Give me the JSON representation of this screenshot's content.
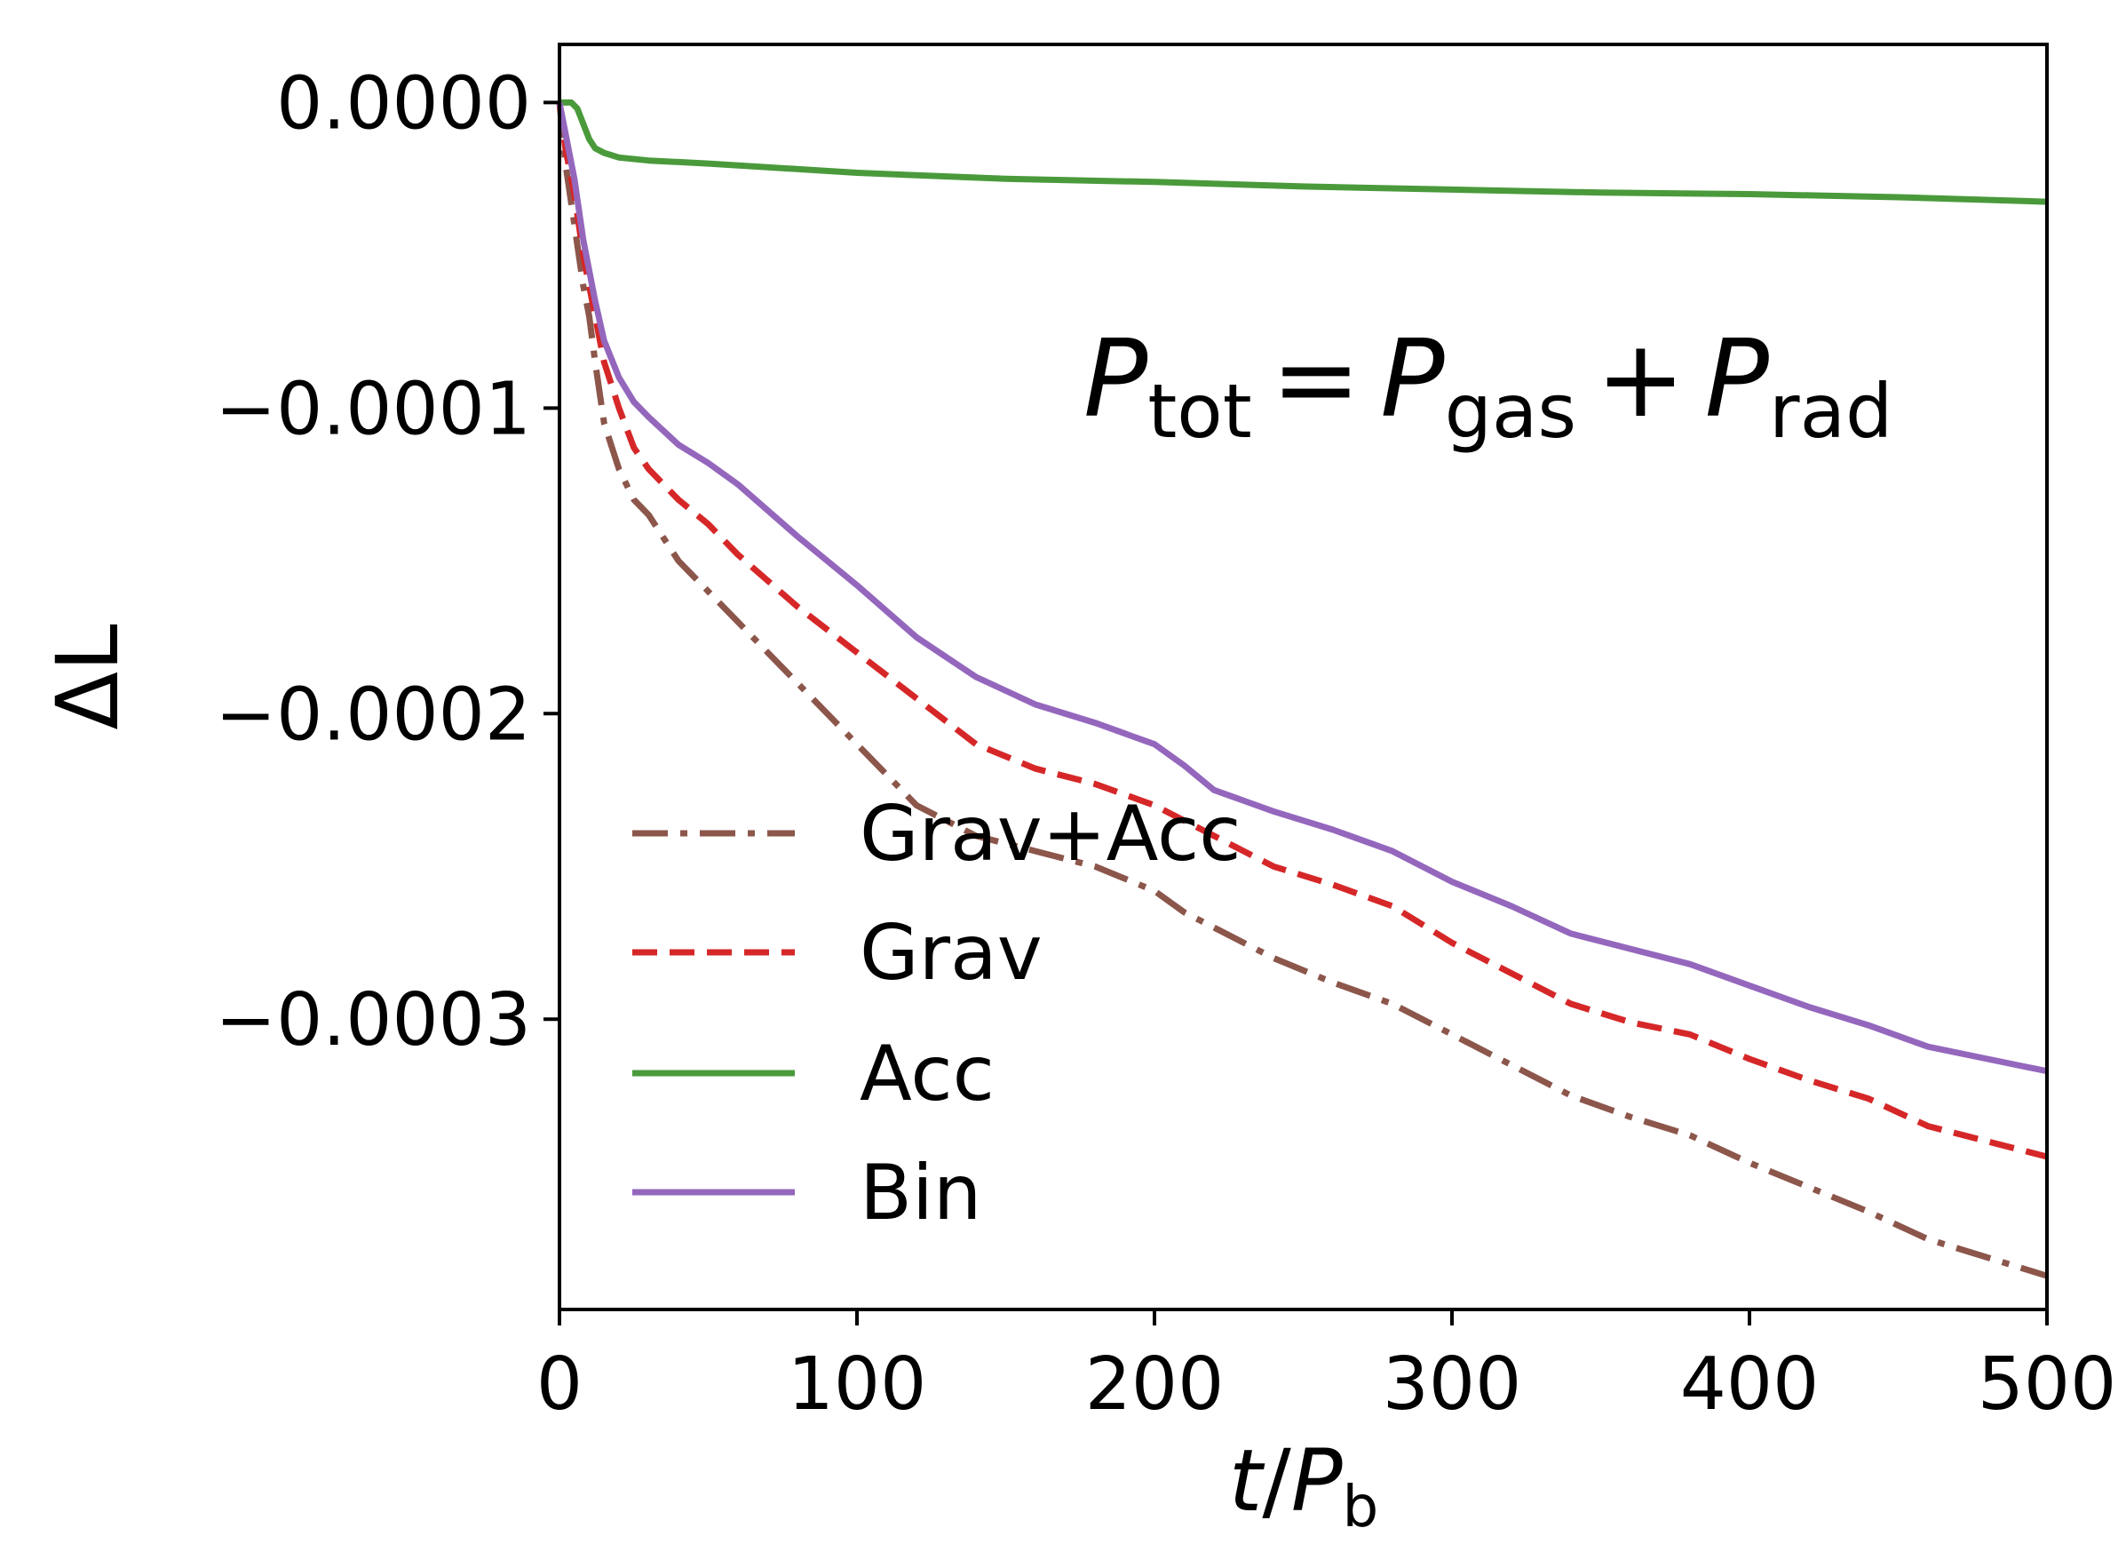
{
  "chart_data": {
    "type": "line",
    "title": "",
    "xlabel_main": "t",
    "xlabel_slash": "/",
    "xlabel_var": "P",
    "xlabel_sub": "b",
    "ylabel": "ΔL",
    "xlim": [
      0,
      500
    ],
    "ylim": [
      -0.000395,
      1.9e-05
    ],
    "xticks": [
      0,
      100,
      200,
      300,
      400,
      500
    ],
    "xtick_labels": [
      "0",
      "100",
      "200",
      "300",
      "400",
      "500"
    ],
    "yticks": [
      0.0,
      -0.0001,
      -0.0002,
      -0.0003
    ],
    "ytick_labels": [
      "0.0000",
      "−0.0001",
      "−0.0002",
      "−0.0003"
    ],
    "grid": false,
    "legend_position": "lower-left",
    "annotation": {
      "lhs_var": "P",
      "lhs_sub": "tot",
      "eq": "=",
      "t1_var": "P",
      "t1_sub": "gas",
      "plus": "+",
      "t2_var": "P",
      "t2_sub": "rad"
    },
    "series": [
      {
        "name": "Grav+Acc",
        "color": "#8c564b",
        "style": "dashdot",
        "x": [
          0,
          2,
          5,
          8,
          10,
          12,
          15,
          20,
          25,
          30,
          40,
          50,
          60,
          80,
          100,
          120,
          140,
          160,
          180,
          200,
          210,
          220,
          240,
          260,
          280,
          300,
          320,
          340,
          360,
          380,
          400,
          420,
          440,
          460,
          480,
          500
        ],
        "y": [
          0.0,
          -2e-05,
          -4e-05,
          -6e-05,
          -7e-05,
          -8.5e-05,
          -0.000105,
          -0.00012,
          -0.00013,
          -0.000135,
          -0.00015,
          -0.00016,
          -0.00017,
          -0.00019,
          -0.00021,
          -0.00023,
          -0.00024,
          -0.000245,
          -0.00025,
          -0.000258,
          -0.000265,
          -0.00027,
          -0.00028,
          -0.000288,
          -0.000295,
          -0.000305,
          -0.000315,
          -0.000325,
          -0.000332,
          -0.000338,
          -0.000347,
          -0.000355,
          -0.000363,
          -0.000372,
          -0.000378,
          -0.000384
        ]
      },
      {
        "name": "Grav",
        "color": "#d62728",
        "style": "dashed",
        "x": [
          0,
          2,
          5,
          8,
          10,
          12,
          15,
          20,
          25,
          30,
          40,
          50,
          60,
          80,
          100,
          120,
          140,
          160,
          180,
          200,
          210,
          220,
          240,
          260,
          280,
          300,
          320,
          340,
          360,
          380,
          400,
          420,
          440,
          460,
          480,
          500
        ],
        "y": [
          0.0,
          -1.5e-05,
          -3e-05,
          -5e-05,
          -6e-05,
          -7e-05,
          -8.5e-05,
          -0.0001,
          -0.000113,
          -0.00012,
          -0.00013,
          -0.000138,
          -0.000148,
          -0.000165,
          -0.00018,
          -0.000195,
          -0.00021,
          -0.000218,
          -0.000223,
          -0.00023,
          -0.000235,
          -0.00024,
          -0.00025,
          -0.000256,
          -0.000263,
          -0.000275,
          -0.000285,
          -0.000295,
          -0.000301,
          -0.000305,
          -0.000313,
          -0.00032,
          -0.000326,
          -0.000335,
          -0.00034,
          -0.000345
        ]
      },
      {
        "name": "Acc",
        "color": "#4a9a3b",
        "style": "solid",
        "x": [
          0,
          2,
          4,
          6,
          8,
          10,
          12,
          15,
          20,
          30,
          50,
          100,
          150,
          200,
          250,
          300,
          350,
          400,
          450,
          500
        ],
        "y": [
          0.0,
          0.0,
          0.0,
          -2e-06,
          -7e-06,
          -1.2e-05,
          -1.5e-05,
          -1.65e-05,
          -1.8e-05,
          -1.9e-05,
          -2e-05,
          -2.3e-05,
          -2.5e-05,
          -2.6e-05,
          -2.75e-05,
          -2.85e-05,
          -2.95e-05,
          -3e-05,
          -3.1e-05,
          -3.25e-05
        ]
      },
      {
        "name": "Bin",
        "color": "#9467bd",
        "style": "solid",
        "x": [
          0,
          2,
          5,
          8,
          10,
          12,
          15,
          20,
          25,
          30,
          40,
          50,
          60,
          80,
          100,
          120,
          140,
          160,
          180,
          200,
          210,
          220,
          240,
          260,
          280,
          300,
          320,
          340,
          360,
          380,
          400,
          420,
          440,
          460,
          480,
          500
        ],
        "y": [
          0.0,
          -1e-05,
          -2.5e-05,
          -4.5e-05,
          -5.5e-05,
          -6.5e-05,
          -7.8e-05,
          -9e-05,
          -9.8e-05,
          -0.000103,
          -0.000112,
          -0.000118,
          -0.000125,
          -0.000142,
          -0.000158,
          -0.000175,
          -0.000188,
          -0.000197,
          -0.000203,
          -0.00021,
          -0.000217,
          -0.000225,
          -0.000232,
          -0.000238,
          -0.000245,
          -0.000255,
          -0.000263,
          -0.000272,
          -0.000277,
          -0.000282,
          -0.000289,
          -0.000296,
          -0.000302,
          -0.000309,
          -0.000313,
          -0.000317
        ]
      }
    ]
  }
}
